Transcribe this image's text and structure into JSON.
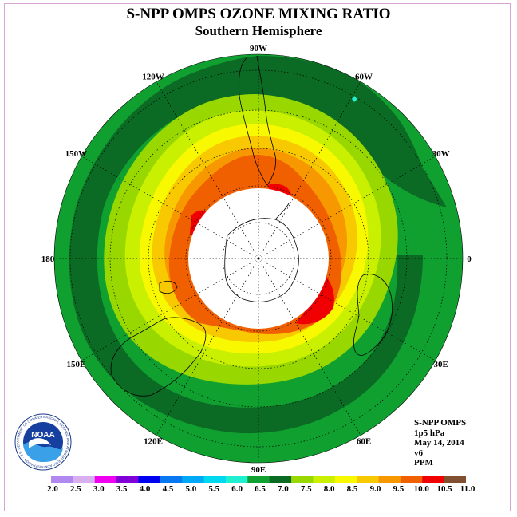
{
  "header": {
    "title": "S-NPP OMPS OZONE MIXING RATIO",
    "subtitle": "Southern Hemisphere"
  },
  "map": {
    "longitude_labels": [
      "90W",
      "60W",
      "30W",
      "0",
      "30E",
      "60E",
      "90E",
      "120E",
      "150E",
      "180",
      "150W",
      "120W"
    ]
  },
  "info": {
    "instrument": "S-NPP OMPS",
    "level": "1p5 hPa",
    "date": "May 14, 2014",
    "version": "v6",
    "units": "PPM"
  },
  "logo": {
    "text": "NOAA",
    "ring_text": "NATIONAL OCEANIC AND ATMOSPHERIC ADMINISTRATION · U.S. DEPARTMENT OF COMMERCE"
  },
  "colorbar": {
    "labels": [
      "2.0",
      "2.5",
      "3.0",
      "3.5",
      "4.0",
      "4.5",
      "5.0",
      "5.5",
      "6.0",
      "6.5",
      "7.0",
      "7.5",
      "8.0",
      "8.5",
      "9.0",
      "9.5",
      "10.0",
      "10.5",
      "11.0"
    ],
    "colors": [
      "#b088f0",
      "#d8b0f0",
      "#f000f0",
      "#8000d8",
      "#0000f0",
      "#0878f0",
      "#00a8f8",
      "#00d8f0",
      "#20f0d0",
      "#10a030",
      "#0b6a24",
      "#98d800",
      "#c8f000",
      "#f8f800",
      "#f8c800",
      "#f89800",
      "#f06000",
      "#f00000",
      "#805030"
    ]
  }
}
